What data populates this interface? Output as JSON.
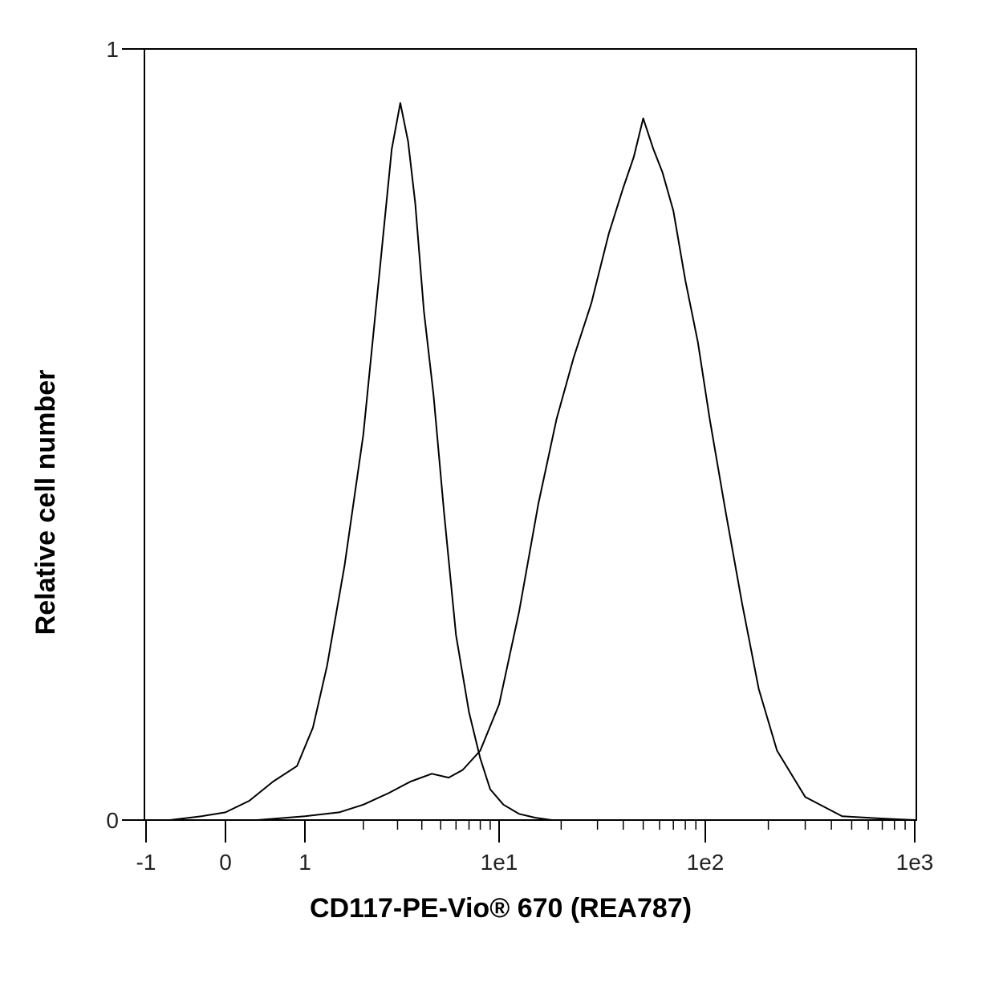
{
  "chart_data": {
    "type": "line",
    "subtype": "flow-cytometry-histogram",
    "xlabel": "CD117-PE-Vio® 670 (REA787)",
    "ylabel": "Relative cell number",
    "x_scale": "biexponential (linear near 0, log above ~1)",
    "xlim": [
      -1,
      1000
    ],
    "ylim": [
      0,
      1
    ],
    "x_ticks": [
      {
        "value": -1,
        "label": "-1"
      },
      {
        "value": 0,
        "label": "0"
      },
      {
        "value": 1,
        "label": "1"
      },
      {
        "value": 10,
        "label": "1e1"
      },
      {
        "value": 100,
        "label": "1e2"
      },
      {
        "value": 1000,
        "label": "1e3"
      }
    ],
    "y_ticks": [
      {
        "value": 0,
        "label": "0"
      },
      {
        "value": 1,
        "label": "1"
      }
    ],
    "grid": false,
    "legend": "none",
    "line_color": "#000000",
    "series": [
      {
        "x": [
          -0.7,
          -0.3,
          0,
          0.3,
          0.6,
          0.9,
          1.1,
          1.3,
          1.6,
          2.0,
          2.4,
          2.8,
          3.1,
          3.4,
          3.7,
          4.1,
          4.6,
          5.2,
          6.0,
          7.0,
          8.0,
          9.0,
          10.5,
          12.5,
          15.0,
          18.0
        ],
        "y": [
          0.0,
          0.005,
          0.01,
          0.025,
          0.05,
          0.07,
          0.12,
          0.2,
          0.33,
          0.5,
          0.7,
          0.87,
          0.93,
          0.88,
          0.8,
          0.66,
          0.55,
          0.4,
          0.24,
          0.14,
          0.08,
          0.04,
          0.02,
          0.008,
          0.003,
          0.0
        ]
      },
      {
        "x": [
          0.4,
          1.0,
          1.5,
          2.0,
          2.7,
          3.5,
          4.5,
          5.5,
          6.5,
          8.0,
          10.0,
          12.5,
          15.5,
          19.0,
          23.0,
          28.0,
          34.0,
          40.0,
          45.0,
          50.0,
          56.0,
          62.0,
          70.0,
          80.0,
          92.0,
          105.0,
          125.0,
          150.0,
          180.0,
          220.0,
          300.0,
          450.0,
          700.0,
          1000.0
        ],
        "y": [
          0.0,
          0.005,
          0.01,
          0.02,
          0.035,
          0.05,
          0.06,
          0.055,
          0.065,
          0.09,
          0.15,
          0.27,
          0.41,
          0.52,
          0.6,
          0.67,
          0.76,
          0.82,
          0.86,
          0.91,
          0.87,
          0.84,
          0.79,
          0.7,
          0.62,
          0.52,
          0.4,
          0.28,
          0.17,
          0.09,
          0.03,
          0.005,
          0.002,
          0.0
        ]
      }
    ]
  }
}
